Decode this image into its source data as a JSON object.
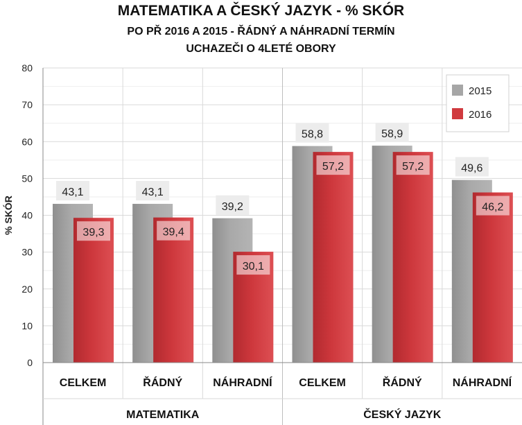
{
  "chart_data": {
    "type": "bar",
    "title": "MATEMATIKA A ČESKÝ JAZYK - % SKÓR",
    "subtitle": [
      "PO PŘ 2016 A 2015 - ŘÁDNÝ A NÁHRADNÍ TERMÍN",
      "UCHAZEČI O 4LETÉ OBORY"
    ],
    "ylabel": "% SKÓR",
    "ylim": [
      0,
      80
    ],
    "yticks": [
      "0",
      "10",
      "20",
      "30",
      "40",
      "50",
      "60",
      "70",
      "80"
    ],
    "grid": true,
    "legend_position": "top-right",
    "groups": [
      {
        "name": "MATEMATIKA",
        "categories": [
          "CELKEM",
          "ŘÁDNÝ",
          "NÁHRADNÍ"
        ]
      },
      {
        "name": "ČESKÝ JAZYK",
        "categories": [
          "CELKEM",
          "ŘÁDNÝ",
          "NÁHRADNÍ"
        ]
      }
    ],
    "series": [
      {
        "name": "2015",
        "color": "#a6a6a6",
        "values": [
          43.1,
          43.1,
          39.2,
          58.8,
          58.9,
          49.6
        ],
        "labels": [
          "43,1",
          "43,1",
          "39,2",
          "58,8",
          "58,9",
          "49,6"
        ]
      },
      {
        "name": "2016",
        "color": "#d03a3e",
        "values": [
          39.3,
          39.4,
          30.1,
          57.2,
          57.2,
          46.2
        ],
        "labels": [
          "39,3",
          "39,4",
          "30,1",
          "57,2",
          "57,2",
          "46,2"
        ]
      }
    ]
  }
}
